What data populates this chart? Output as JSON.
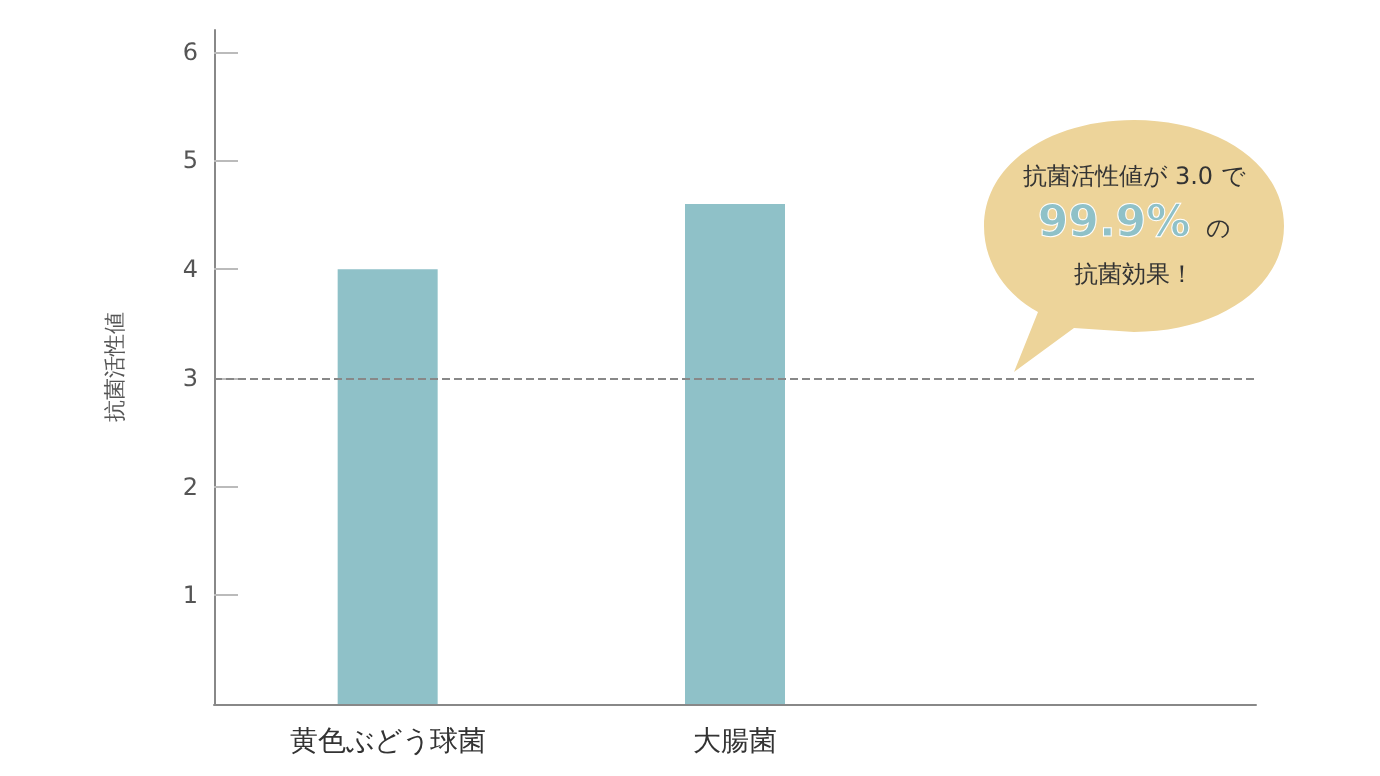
{
  "chart_data": {
    "type": "bar",
    "ylabel": "抗菌活性値",
    "categories": [
      "黄色ぶどう球菌",
      "大腸菌",
      null
    ],
    "values": [
      4.0,
      4.6,
      null
    ],
    "color": "#8fc1c8",
    "ylim": [
      0,
      6.2
    ],
    "yticks": [
      1,
      2,
      3,
      4,
      5,
      6
    ],
    "grid": false,
    "ref_lines": [
      {
        "axis": "y",
        "value": 3,
        "color": "#888888",
        "line_style": "dashed"
      }
    ],
    "annotations": [
      "抗菌活性値が 3.0 で",
      "99.9%",
      "の",
      "抗菌効果！"
    ]
  }
}
